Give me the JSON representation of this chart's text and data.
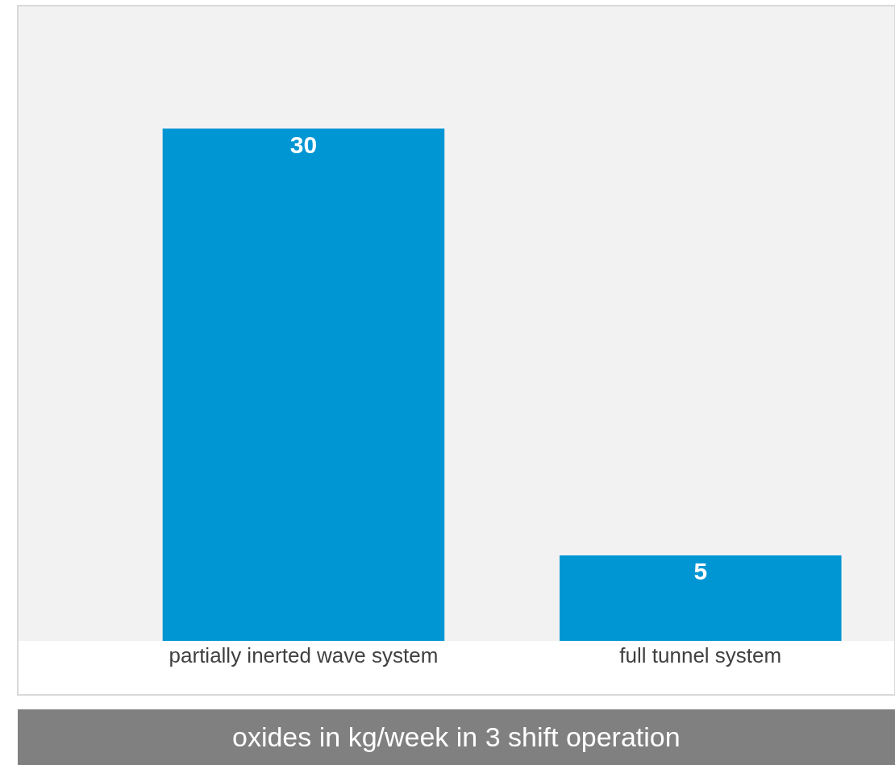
{
  "chart_data": {
    "type": "bar",
    "title": "oxides in kg/week in 3 shift operation",
    "categories": [
      "partially inerted wave system",
      "full tunnel system"
    ],
    "values": [
      30,
      5
    ],
    "color": "#0096d3",
    "data_labels": true,
    "grid": false,
    "legend": false
  }
}
